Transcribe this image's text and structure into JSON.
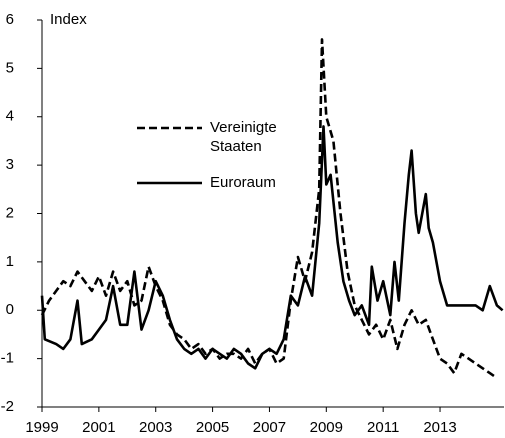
{
  "chart_data": {
    "type": "line",
    "y_label": "Index",
    "xlim": [
      1999,
      2015.25
    ],
    "xticks": [
      1999,
      2001,
      2003,
      2005,
      2007,
      2009,
      2011,
      2013
    ],
    "ylim": [
      -2,
      6
    ],
    "yticks": [
      -2,
      -1,
      0,
      1,
      2,
      3,
      4,
      5,
      6
    ],
    "grid": false,
    "series": [
      {
        "name": "Vereinigte Staaten",
        "color": "#000000",
        "dash": true,
        "x": [
          1999.0,
          1999.25,
          1999.5,
          1999.75,
          2000.0,
          2000.25,
          2000.5,
          2000.75,
          2001.0,
          2001.25,
          2001.5,
          2001.75,
          2002.0,
          2002.25,
          2002.5,
          2002.75,
          2003.0,
          2003.25,
          2003.5,
          2003.75,
          2004.0,
          2004.25,
          2004.5,
          2004.75,
          2005.0,
          2005.25,
          2005.5,
          2005.75,
          2006.0,
          2006.25,
          2006.5,
          2006.75,
          2007.0,
          2007.25,
          2007.5,
          2007.75,
          2008.0,
          2008.25,
          2008.5,
          2008.75,
          2008.85,
          2009.0,
          2009.25,
          2009.5,
          2009.75,
          2010.0,
          2010.25,
          2010.5,
          2010.75,
          2011.0,
          2011.25,
          2011.5,
          2011.75,
          2012.0,
          2012.25,
          2012.5,
          2012.75,
          2013.0,
          2013.25,
          2013.5,
          2013.75,
          2014.0,
          2014.25,
          2014.5,
          2014.75,
          2015.0
        ],
        "values": [
          -0.1,
          0.2,
          0.4,
          0.6,
          0.5,
          0.8,
          0.6,
          0.4,
          0.7,
          0.3,
          0.8,
          0.4,
          0.6,
          0.1,
          0.2,
          0.9,
          0.5,
          0.2,
          -0.3,
          -0.5,
          -0.6,
          -0.8,
          -0.7,
          -0.9,
          -0.8,
          -1.0,
          -0.9,
          -0.9,
          -1.0,
          -0.8,
          -1.1,
          -0.9,
          -0.8,
          -1.1,
          -1.0,
          0.2,
          1.1,
          0.6,
          1.2,
          2.5,
          5.6,
          4.0,
          3.5,
          2.0,
          0.8,
          0.1,
          -0.2,
          -0.5,
          -0.3,
          -0.6,
          -0.2,
          -0.8,
          -0.3,
          0.0,
          -0.3,
          -0.2,
          -0.6,
          -1.0,
          -1.1,
          -1.3,
          -0.9,
          -1.0,
          -1.1,
          -1.2,
          -1.3,
          -1.4
        ]
      },
      {
        "name": "Euroraum",
        "color": "#000000",
        "dash": false,
        "x": [
          1999.0,
          1999.1,
          1999.5,
          1999.75,
          2000.0,
          2000.25,
          2000.4,
          2000.75,
          2001.0,
          2001.25,
          2001.5,
          2001.75,
          2002.0,
          2002.25,
          2002.5,
          2002.75,
          2003.0,
          2003.25,
          2003.5,
          2003.75,
          2004.0,
          2004.25,
          2004.5,
          2004.75,
          2005.0,
          2005.25,
          2005.5,
          2005.75,
          2006.0,
          2006.25,
          2006.5,
          2006.75,
          2007.0,
          2007.25,
          2007.5,
          2007.75,
          2008.0,
          2008.25,
          2008.5,
          2008.75,
          2008.9,
          2009.0,
          2009.15,
          2009.4,
          2009.6,
          2009.8,
          2010.0,
          2010.25,
          2010.5,
          2010.6,
          2010.8,
          2011.0,
          2011.25,
          2011.4,
          2011.55,
          2011.75,
          2011.9,
          2012.0,
          2012.15,
          2012.25,
          2012.5,
          2012.6,
          2012.75,
          2013.0,
          2013.25,
          2013.5,
          2013.75,
          2014.0,
          2014.25,
          2014.5,
          2014.75,
          2015.0,
          2015.2
        ],
        "values": [
          0.3,
          -0.6,
          -0.7,
          -0.8,
          -0.6,
          0.2,
          -0.7,
          -0.6,
          -0.4,
          -0.2,
          0.5,
          -0.3,
          -0.3,
          0.8,
          -0.4,
          0.0,
          0.6,
          0.3,
          -0.2,
          -0.6,
          -0.8,
          -0.9,
          -0.8,
          -1.0,
          -0.8,
          -0.9,
          -1.0,
          -0.8,
          -0.9,
          -1.1,
          -1.2,
          -0.9,
          -0.8,
          -0.9,
          -0.6,
          0.3,
          0.1,
          0.7,
          0.3,
          1.8,
          3.8,
          2.6,
          2.8,
          1.4,
          0.6,
          0.2,
          -0.1,
          0.1,
          -0.3,
          0.9,
          0.2,
          0.6,
          -0.1,
          1.0,
          0.2,
          1.8,
          2.8,
          3.3,
          2.0,
          1.6,
          2.4,
          1.7,
          1.4,
          0.6,
          0.1,
          0.1,
          0.1,
          0.1,
          0.1,
          0.0,
          0.5,
          0.1,
          0.0
        ]
      }
    ]
  }
}
